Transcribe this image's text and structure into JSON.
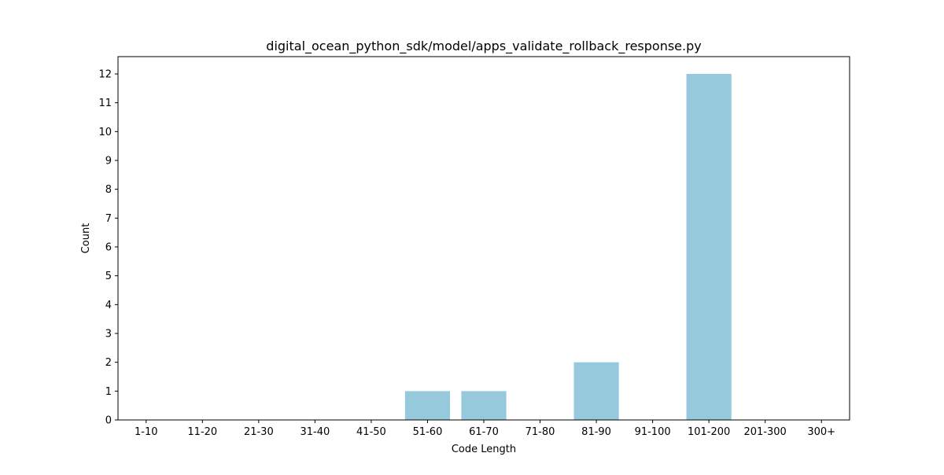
{
  "chart_data": {
    "type": "bar",
    "title": "digital_ocean_python_sdk/model/apps_validate_rollback_response.py",
    "xlabel": "Code Length",
    "ylabel": "Count",
    "categories": [
      "1-10",
      "11-20",
      "21-30",
      "31-40",
      "41-50",
      "51-60",
      "61-70",
      "71-80",
      "81-90",
      "91-100",
      "101-200",
      "201-300",
      "300+"
    ],
    "values": [
      0,
      0,
      0,
      0,
      0,
      1,
      1,
      0,
      2,
      0,
      12,
      0,
      0
    ],
    "ylim": [
      0,
      12.6
    ],
    "yticks": [
      0,
      1,
      2,
      3,
      4,
      5,
      6,
      7,
      8,
      9,
      10,
      11,
      12
    ],
    "bar_color": "#96c9dc",
    "grid": false,
    "legend": "none"
  }
}
